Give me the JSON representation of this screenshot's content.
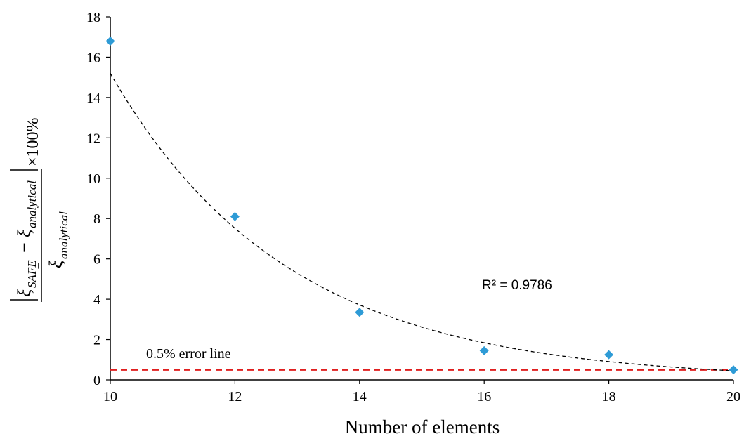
{
  "chart_data": {
    "type": "scatter",
    "xlabel": "Number of elements",
    "ylabel_parts": {
      "num_xi1": "ξ",
      "num_sub1": "SAFE",
      "minus": "−",
      "num_xi2": "ξ",
      "num_sub2": "analytical",
      "den_xi": "ξ",
      "den_sub": "analytical",
      "factor": "×100%"
    },
    "xlim": [
      10,
      20
    ],
    "ylim": [
      0,
      18
    ],
    "x_ticks": [
      "10",
      "12",
      "14",
      "16",
      "18",
      "20"
    ],
    "y_ticks": [
      "0",
      "2",
      "4",
      "6",
      "8",
      "10",
      "12",
      "14",
      "16",
      "18"
    ],
    "grid": false,
    "series": [
      {
        "marker": "diamond",
        "color": "#2e9bd6",
        "points": [
          {
            "x": 10,
            "y": 16.8
          },
          {
            "x": 12,
            "y": 8.1
          },
          {
            "x": 14,
            "y": 3.35
          },
          {
            "x": 16,
            "y": 1.45
          },
          {
            "x": 18,
            "y": 1.25
          },
          {
            "x": 20,
            "y": 0.5
          }
        ]
      }
    ],
    "trendline": {
      "type": "exponential",
      "style": "dashed",
      "color": "#000000",
      "start": {
        "x": 10,
        "y": 15.2
      },
      "end": {
        "x": 20,
        "y": 0.45
      },
      "r2_label": "R² = 0.9786"
    },
    "reference_line": {
      "y": 0.5,
      "color": "#e02020",
      "style": "dashed",
      "label": "0.5% error line"
    }
  }
}
